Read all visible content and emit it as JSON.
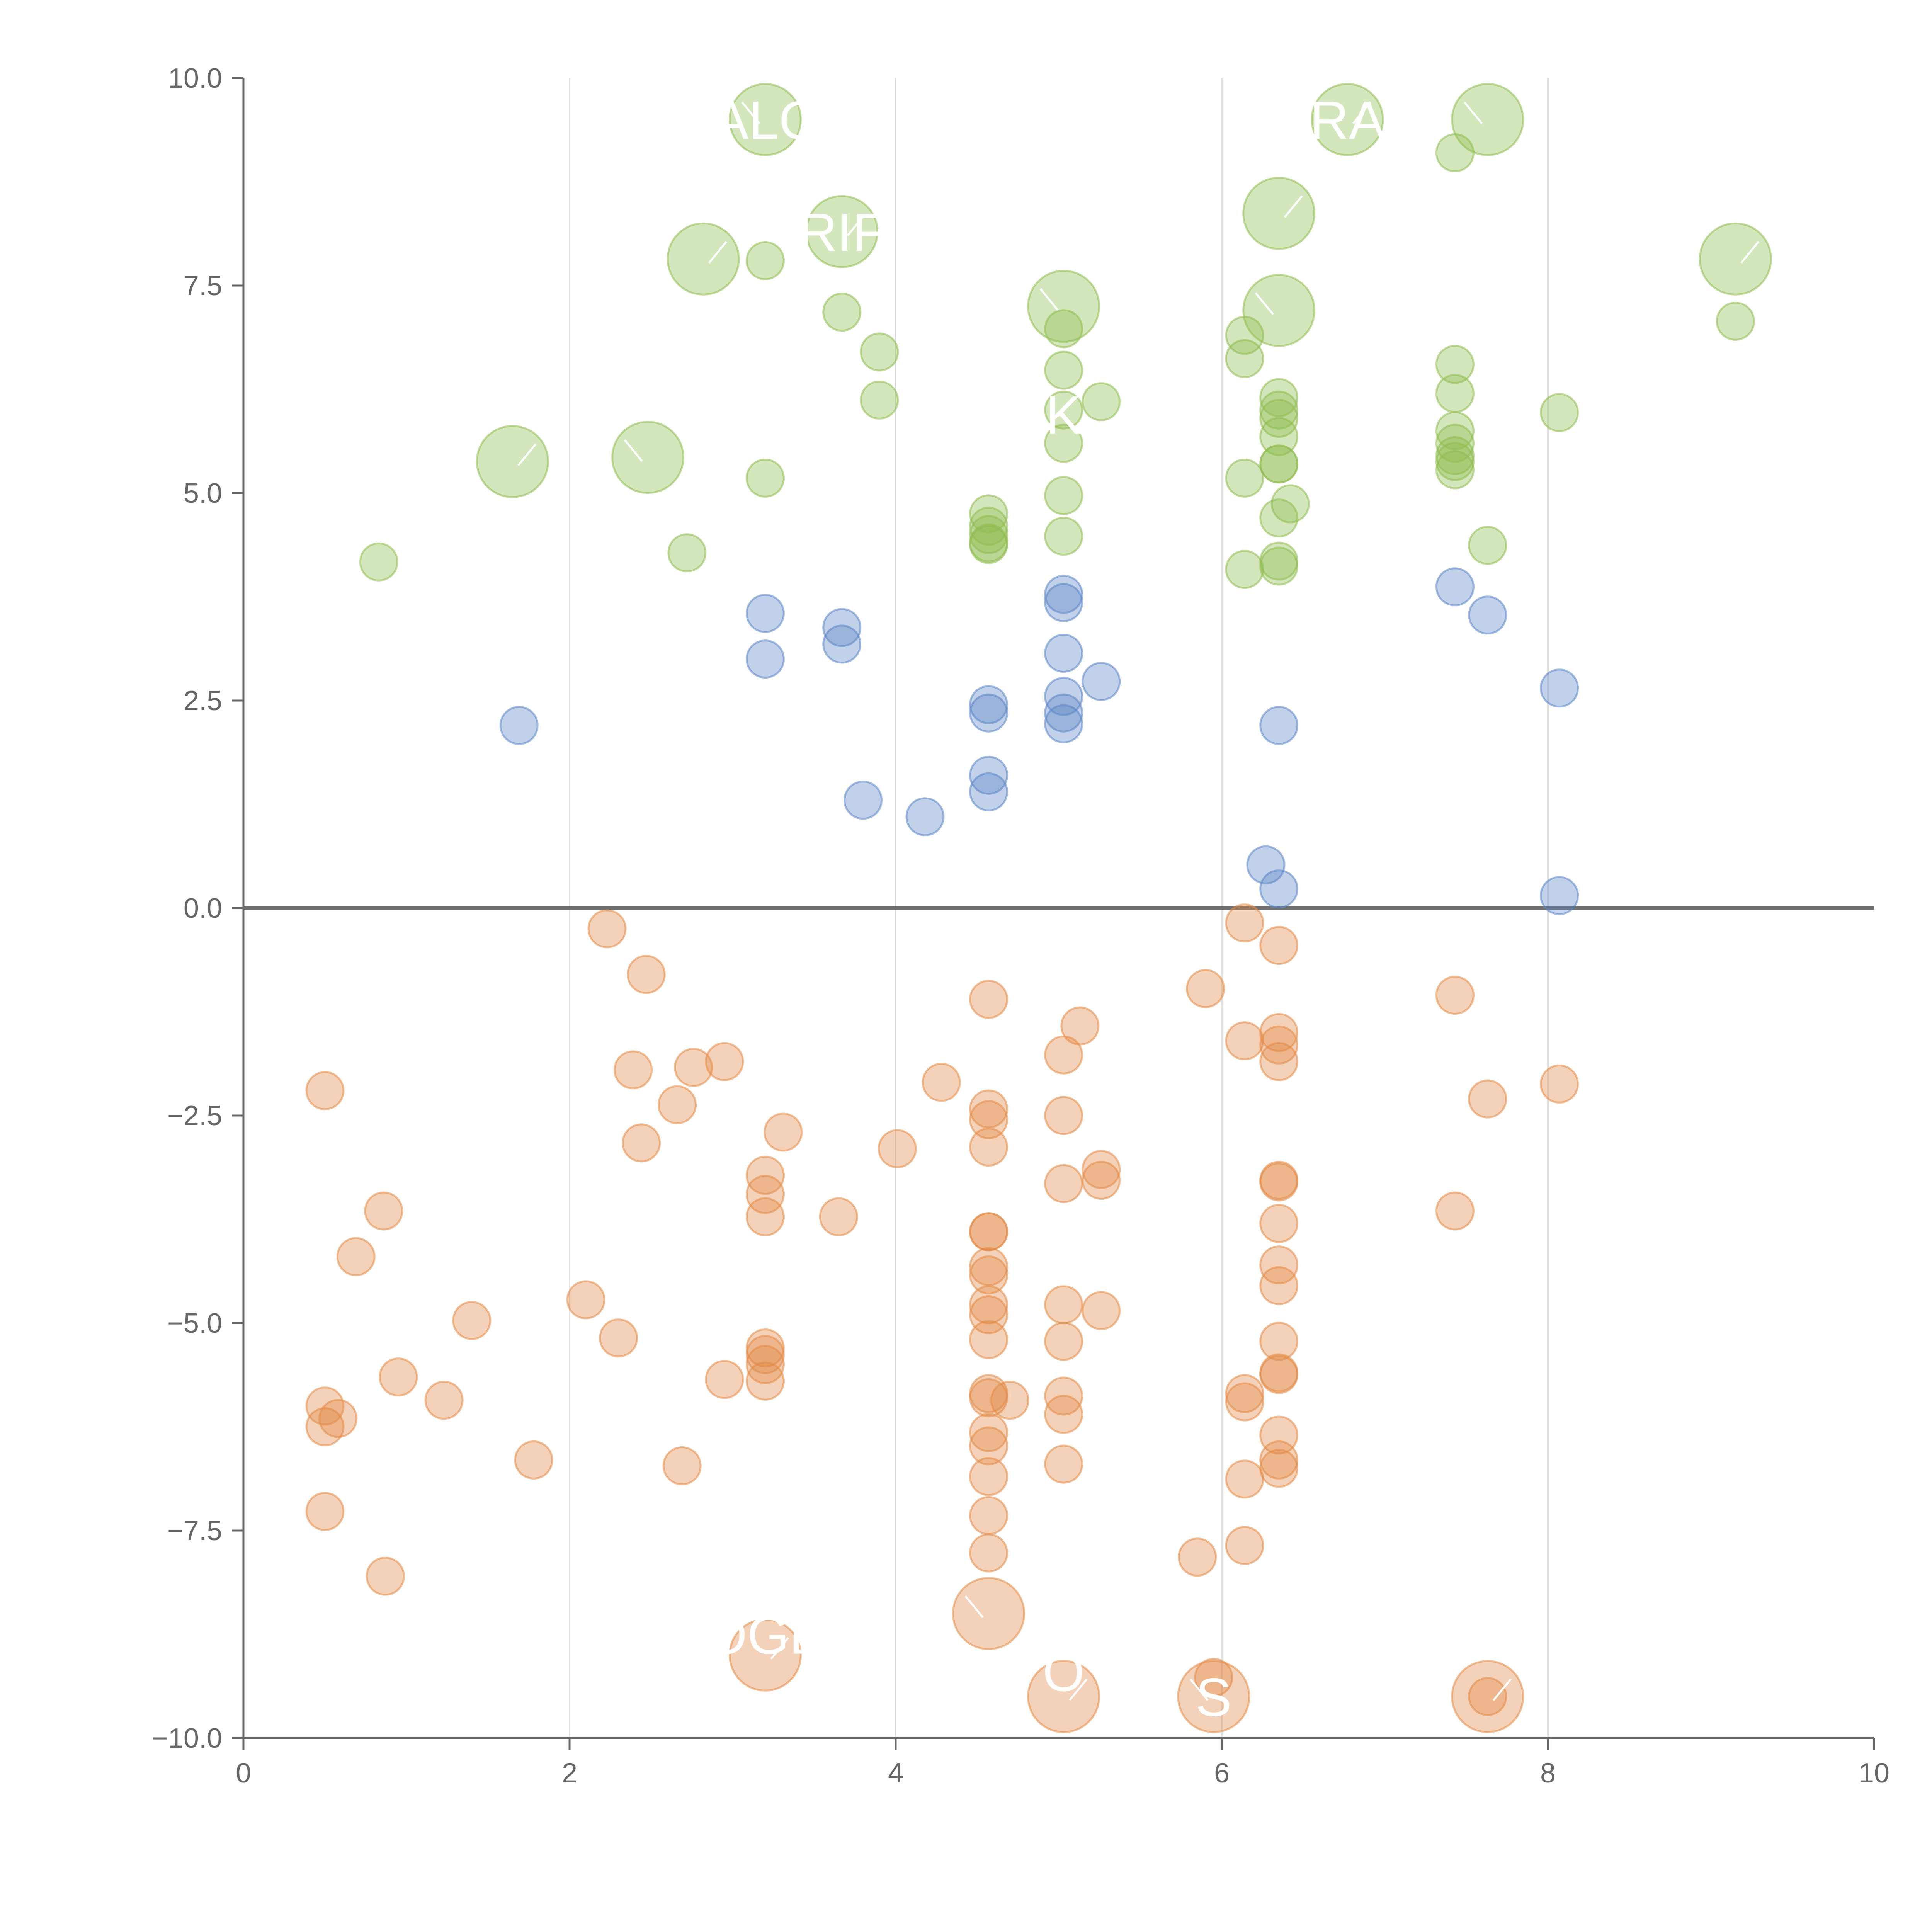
{
  "chart_data": {
    "type": "scatter",
    "title": "",
    "xlabel": "",
    "ylabel": "",
    "xlim": [
      0,
      10
    ],
    "ylim": [
      -10,
      10
    ],
    "x_ticks": [
      "0",
      "2",
      "4",
      "6",
      "8",
      "10"
    ],
    "y_ticks": [
      "10.0",
      "7.5",
      "5.0",
      "2.5",
      "0.0",
      "−2.5",
      "−5.0",
      "−7.5",
      "−10.0"
    ],
    "x_tick_values": [
      0,
      2,
      4,
      6,
      8,
      10
    ],
    "y_tick_values": [
      10,
      7.5,
      5,
      2.5,
      0,
      -2.5,
      -5,
      -7.5,
      -10
    ],
    "grid": "vertical lines at x ticks",
    "reference_line_y": 0,
    "colors": {
      "green": "#8fbc4e",
      "blue": "#5b85c6",
      "orange": "#e38a46",
      "axis": "#666666",
      "grid": "#dddddd",
      "zero_line": "#707070"
    },
    "series": [
      {
        "name": "green",
        "points": [
          [
            0.83,
            4.17
          ],
          [
            2.72,
            4.28
          ],
          [
            3.2,
            5.18
          ],
          [
            3.2,
            7.8
          ],
          [
            3.67,
            7.18
          ],
          [
            3.9,
            6.7
          ],
          [
            3.9,
            6.12
          ],
          [
            4.57,
            4.4
          ],
          [
            4.57,
            4.5
          ],
          [
            4.57,
            4.6
          ],
          [
            4.57,
            4.75
          ],
          [
            4.57,
            4.38
          ],
          [
            5.03,
            6.98
          ],
          [
            5.03,
            6.48
          ],
          [
            5.03,
            6.0
          ],
          [
            5.03,
            5.6
          ],
          [
            5.03,
            4.97
          ],
          [
            5.03,
            4.48
          ],
          [
            5.26,
            6.1
          ],
          [
            6.14,
            6.9
          ],
          [
            6.14,
            6.62
          ],
          [
            6.14,
            5.18
          ],
          [
            6.14,
            4.08
          ],
          [
            6.35,
            6.15
          ],
          [
            6.35,
            6.0
          ],
          [
            6.35,
            5.9
          ],
          [
            6.35,
            5.68
          ],
          [
            6.35,
            5.35
          ],
          [
            6.35,
            5.35
          ],
          [
            6.35,
            4.7
          ],
          [
            6.35,
            4.18
          ],
          [
            6.35,
            4.12
          ],
          [
            6.42,
            4.87
          ],
          [
            7.43,
            9.1
          ],
          [
            7.43,
            6.55
          ],
          [
            7.43,
            6.2
          ],
          [
            7.43,
            5.75
          ],
          [
            7.43,
            5.6
          ],
          [
            7.43,
            5.45
          ],
          [
            7.43,
            5.38
          ],
          [
            7.43,
            5.28
          ],
          [
            7.63,
            4.37
          ],
          [
            8.07,
            5.97
          ],
          [
            9.15,
            7.07
          ]
        ],
        "large_points": [
          [
            1.65,
            5.38
          ],
          [
            2.48,
            5.43
          ],
          [
            2.82,
            7.82
          ],
          [
            3.2,
            9.5
          ],
          [
            3.67,
            8.15
          ],
          [
            5.03,
            7.25
          ],
          [
            6.35,
            8.37
          ],
          [
            6.35,
            7.2
          ],
          [
            6.77,
            9.5
          ],
          [
            7.63,
            9.5
          ],
          [
            9.15,
            7.82
          ]
        ]
      },
      {
        "name": "blue",
        "points": [
          [
            1.69,
            2.2
          ],
          [
            3.2,
            3.55
          ],
          [
            3.2,
            3.0
          ],
          [
            3.67,
            3.38
          ],
          [
            3.67,
            3.18
          ],
          [
            3.8,
            1.3
          ],
          [
            4.18,
            1.1
          ],
          [
            4.57,
            2.45
          ],
          [
            4.57,
            2.35
          ],
          [
            4.57,
            1.6
          ],
          [
            4.57,
            1.4
          ],
          [
            5.03,
            3.78
          ],
          [
            5.03,
            3.68
          ],
          [
            5.03,
            3.07
          ],
          [
            5.03,
            2.55
          ],
          [
            5.03,
            2.35
          ],
          [
            5.03,
            2.22
          ],
          [
            5.26,
            2.73
          ],
          [
            6.27,
            0.52
          ],
          [
            6.35,
            2.2
          ],
          [
            6.35,
            0.23
          ],
          [
            7.43,
            3.87
          ],
          [
            7.63,
            3.53
          ],
          [
            8.07,
            2.65
          ],
          [
            8.07,
            0.15
          ]
        ],
        "large_points": []
      },
      {
        "name": "orange",
        "points": [
          [
            0.5,
            -2.2
          ],
          [
            0.5,
            -6.0
          ],
          [
            0.5,
            -6.25
          ],
          [
            0.5,
            -7.27
          ],
          [
            0.58,
            -6.15
          ],
          [
            0.69,
            -4.2
          ],
          [
            0.86,
            -3.65
          ],
          [
            0.87,
            -8.05
          ],
          [
            0.95,
            -5.65
          ],
          [
            1.23,
            -5.93
          ],
          [
            1.4,
            -4.97
          ],
          [
            1.78,
            -6.65
          ],
          [
            2.1,
            -4.72
          ],
          [
            2.23,
            -0.25
          ],
          [
            2.3,
            -5.18
          ],
          [
            2.39,
            -1.95
          ],
          [
            2.44,
            -2.83
          ],
          [
            2.47,
            -0.8
          ],
          [
            2.66,
            -2.37
          ],
          [
            2.69,
            -6.72
          ],
          [
            2.76,
            -1.92
          ],
          [
            2.95,
            -1.85
          ],
          [
            2.95,
            -5.68
          ],
          [
            3.2,
            -3.22
          ],
          [
            3.2,
            -3.45
          ],
          [
            3.2,
            -3.72
          ],
          [
            3.2,
            -5.3
          ],
          [
            3.2,
            -5.38
          ],
          [
            3.2,
            -5.5
          ],
          [
            3.2,
            -5.7
          ],
          [
            3.31,
            -2.7
          ],
          [
            3.65,
            -3.72
          ],
          [
            4.01,
            -2.9
          ],
          [
            4.28,
            -2.1
          ],
          [
            4.57,
            -1.1
          ],
          [
            4.57,
            -2.42
          ],
          [
            4.57,
            -2.55
          ],
          [
            4.57,
            -2.88
          ],
          [
            4.57,
            -3.9
          ],
          [
            4.57,
            -3.9
          ],
          [
            4.57,
            -4.32
          ],
          [
            4.57,
            -4.42
          ],
          [
            4.57,
            -4.78
          ],
          [
            4.57,
            -4.9
          ],
          [
            4.57,
            -5.2
          ],
          [
            4.57,
            -5.85
          ],
          [
            4.57,
            -5.9
          ],
          [
            4.57,
            -6.32
          ],
          [
            4.57,
            -6.48
          ],
          [
            4.57,
            -6.85
          ],
          [
            4.57,
            -7.32
          ],
          [
            4.57,
            -7.77
          ],
          [
            4.7,
            -5.93
          ],
          [
            5.03,
            -1.77
          ],
          [
            5.03,
            -2.5
          ],
          [
            5.03,
            -3.32
          ],
          [
            5.03,
            -4.78
          ],
          [
            5.03,
            -5.22
          ],
          [
            5.03,
            -5.88
          ],
          [
            5.03,
            -6.1
          ],
          [
            5.03,
            -6.7
          ],
          [
            5.13,
            -1.42
          ],
          [
            5.26,
            -3.15
          ],
          [
            5.26,
            -3.28
          ],
          [
            5.26,
            -4.85
          ],
          [
            5.9,
            -0.97
          ],
          [
            5.85,
            -7.82
          ],
          [
            5.95,
            -9.27
          ],
          [
            6.14,
            -0.18
          ],
          [
            6.14,
            -1.6
          ],
          [
            6.14,
            -5.85
          ],
          [
            6.14,
            -5.95
          ],
          [
            6.14,
            -6.88
          ],
          [
            6.14,
            -7.68
          ],
          [
            6.35,
            -0.45
          ],
          [
            6.35,
            -1.5
          ],
          [
            6.35,
            -1.65
          ],
          [
            6.35,
            -1.85
          ],
          [
            6.35,
            -3.28
          ],
          [
            6.35,
            -3.3
          ],
          [
            6.35,
            -3.8
          ],
          [
            6.35,
            -4.3
          ],
          [
            6.35,
            -4.55
          ],
          [
            6.35,
            -5.22
          ],
          [
            6.35,
            -5.6
          ],
          [
            6.35,
            -5.62
          ],
          [
            6.35,
            -6.35
          ],
          [
            6.35,
            -6.65
          ],
          [
            6.35,
            -6.75
          ],
          [
            7.43,
            -1.05
          ],
          [
            7.43,
            -3.65
          ],
          [
            7.63,
            -2.3
          ],
          [
            7.63,
            -9.5
          ],
          [
            8.07,
            -2.12
          ]
        ],
        "large_points": [
          [
            3.2,
            -9.0
          ],
          [
            4.57,
            -8.5
          ],
          [
            5.03,
            -9.5
          ],
          [
            5.95,
            -9.5
          ],
          [
            7.63,
            -9.5
          ]
        ]
      }
    ],
    "annotations": [
      {
        "text": "ALC",
        "x": 3.2,
        "y": 9.5,
        "series": "green"
      },
      {
        "text": "RA",
        "x": 6.77,
        "y": 9.5,
        "series": "green"
      },
      {
        "text": "RIF",
        "x": 3.67,
        "y": 8.15,
        "series": "green"
      },
      {
        "text": "K",
        "x": 5.03,
        "y": 5.95,
        "series": "green"
      },
      {
        "text": "OGE",
        "x": 3.2,
        "y": -8.75,
        "series": "orange"
      },
      {
        "text": "O",
        "x": 5.03,
        "y": -9.2,
        "series": "orange"
      },
      {
        "text": "S",
        "x": 5.95,
        "y": -9.5,
        "series": "orange"
      }
    ]
  }
}
